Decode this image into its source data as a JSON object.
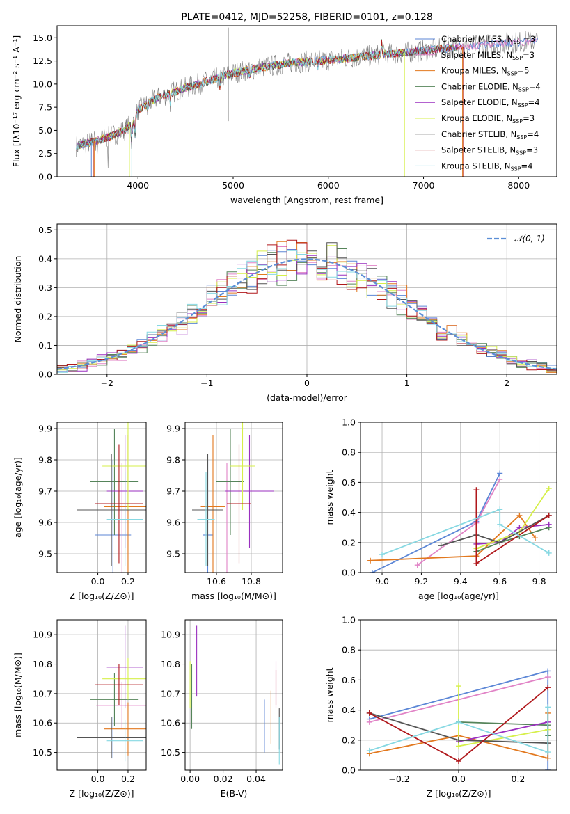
{
  "colors": {
    "chabrier_miles": "#5b86d6",
    "salpeter_miles": "#e183c6",
    "kroupa_miles": "#e2781e",
    "chabrier_elodie": "#55845a",
    "salpeter_elodie": "#9a2fbf",
    "kroupa_elodie": "#d6ef4a",
    "chabrier_stelib": "#545454",
    "salpeter_stelib": "#b0181c",
    "kroupa_stelib": "#86d8e2",
    "gaussian": "#5b8ed6",
    "grid": "#b0b0b0"
  },
  "chart_data": [
    {
      "id": "spectrum",
      "type": "line",
      "title": "PLATE=0412, MJD=52258, FIBERID=0101, z=0.128",
      "xlabel": "wavelength [Angstrom, rest frame]",
      "ylabel": "Flux [fλ10⁻¹⁷ erg cm⁻² s⁻¹ A⁻¹]",
      "xlim": [
        3150,
        8400
      ],
      "ylim": [
        0,
        16.3
      ],
      "xticks": [
        4000,
        5000,
        6000,
        7000,
        8000
      ],
      "yticks": [
        0.0,
        2.5,
        5.0,
        7.5,
        10.0,
        12.5,
        15.0
      ],
      "grid": false,
      "legend_position": "top-right",
      "legend": [
        {
          "label": "Chabrier MILES, N_SSP=3",
          "color": "#5b86d6"
        },
        {
          "label": "Salpeter MILES, N_SSP=3",
          "color": "#e183c6"
        },
        {
          "label": "Kroupa MILES, N_SSP=5",
          "color": "#e2781e"
        },
        {
          "label": "Chabrier ELODIE, N_SSP=4",
          "color": "#55845a"
        },
        {
          "label": "Salpeter ELODIE, N_SSP=4",
          "color": "#9a2fbf"
        },
        {
          "label": "Kroupa ELODIE, N_SSP=3",
          "color": "#d6ef4a"
        },
        {
          "label": "Chabrier STELIB, N_SSP=4",
          "color": "#545454"
        },
        {
          "label": "Salpeter STELIB, N_SSP=3",
          "color": "#b0181c"
        },
        {
          "label": "Kroupa STELIB, N_SSP=4",
          "color": "#86d8e2"
        }
      ],
      "continuum": {
        "x": [
          3350,
          3500,
          3700,
          3850,
          3950,
          4000,
          4200,
          4500,
          4800,
          5000,
          5300,
          5600,
          6000,
          6400,
          6800,
          7200,
          7500,
          7800,
          8200
        ],
        "y": [
          3.3,
          3.7,
          4.3,
          5.0,
          5.8,
          7.2,
          8.5,
          9.6,
          10.5,
          11.2,
          11.8,
          12.3,
          12.6,
          13.0,
          13.4,
          13.8,
          14.1,
          14.4,
          14.7
        ]
      }
    },
    {
      "id": "residuals",
      "type": "histogram",
      "xlabel": "(data-model)/error",
      "ylabel": "Normed distribution",
      "xlim": [
        -2.5,
        2.5
      ],
      "ylim": [
        0,
        0.52
      ],
      "xticks": [
        -2,
        -1,
        0,
        1,
        2
      ],
      "yticks": [
        0.0,
        0.1,
        0.2,
        0.3,
        0.4,
        0.5
      ],
      "grid": true,
      "legend_position": "top-right",
      "legend": [
        {
          "label": "𝒩(0, 1)",
          "color": "#5b8ed6"
        }
      ],
      "bin_width": 0.1
    },
    {
      "id": "age_vs_Z",
      "type": "errorbar",
      "xlabel": "Z [log₁₀(Z/Z⊙)]",
      "ylabel": "age  [log₁₀(age/yr)]",
      "xlim": [
        -0.27,
        0.32
      ],
      "ylim": [
        9.44,
        9.92
      ],
      "xticks": [
        0.0,
        0.2
      ],
      "yticks": [
        9.5,
        9.6,
        9.7,
        9.8,
        9.9
      ],
      "grid": true,
      "points": [
        {
          "x": 0.1,
          "xerr": 0.12,
          "y": 9.56,
          "yerr": 0.24,
          "color": "#5b86d6"
        },
        {
          "x": 0.16,
          "xerr": 0.17,
          "y": 9.55,
          "yerr": 0.24,
          "color": "#e183c6"
        },
        {
          "x": 0.2,
          "xerr": 0.16,
          "y": 9.65,
          "yerr": 0.23,
          "color": "#e2781e"
        },
        {
          "x": 0.11,
          "xerr": 0.16,
          "y": 9.73,
          "yerr": 0.17,
          "color": "#55845a"
        },
        {
          "x": 0.18,
          "xerr": 0.12,
          "y": 9.7,
          "yerr": 0.18,
          "color": "#9a2fbf"
        },
        {
          "x": 0.2,
          "xerr": 0.17,
          "y": 9.78,
          "yerr": 0.14,
          "color": "#d6ef4a"
        },
        {
          "x": 0.09,
          "xerr": 0.23,
          "y": 9.64,
          "yerr": 0.18,
          "color": "#545454"
        },
        {
          "x": 0.14,
          "xerr": 0.16,
          "y": 9.66,
          "yerr": 0.19,
          "color": "#b0181c"
        },
        {
          "x": 0.18,
          "xerr": 0.12,
          "y": 9.61,
          "yerr": 0.15,
          "color": "#86d8e2"
        }
      ]
    },
    {
      "id": "age_vs_mass",
      "type": "errorbar",
      "xlabel": "mass [log₁₀(M/M⊙)]",
      "ylabel": "",
      "xlim": [
        10.42,
        10.98
      ],
      "ylim": [
        9.44,
        9.92
      ],
      "xticks": [
        10.6,
        10.8
      ],
      "yticks": [
        9.5,
        9.6,
        9.7,
        9.8,
        9.9
      ],
      "grid": true,
      "points": [
        {
          "x": 10.55,
          "xerr": 0.03,
          "y": 9.56,
          "yerr": 0.24,
          "color": "#5b86d6"
        },
        {
          "x": 10.66,
          "xerr": 0.06,
          "y": 9.55,
          "yerr": 0.24,
          "color": "#e183c6"
        },
        {
          "x": 10.58,
          "xerr": 0.07,
          "y": 9.65,
          "yerr": 0.23,
          "color": "#e2781e"
        },
        {
          "x": 10.68,
          "xerr": 0.08,
          "y": 9.73,
          "yerr": 0.17,
          "color": "#55845a"
        },
        {
          "x": 10.79,
          "xerr": 0.14,
          "y": 9.7,
          "yerr": 0.18,
          "color": "#9a2fbf"
        },
        {
          "x": 10.75,
          "xerr": 0.07,
          "y": 9.78,
          "yerr": 0.14,
          "color": "#d6ef4a"
        },
        {
          "x": 10.55,
          "xerr": 0.09,
          "y": 9.64,
          "yerr": 0.18,
          "color": "#545454"
        },
        {
          "x": 10.73,
          "xerr": 0.07,
          "y": 9.66,
          "yerr": 0.19,
          "color": "#b0181c"
        },
        {
          "x": 10.54,
          "xerr": 0.05,
          "y": 9.61,
          "yerr": 0.15,
          "color": "#86d8e2"
        }
      ]
    },
    {
      "id": "weight_vs_age",
      "type": "line",
      "xlabel": "age  [log₁₀(age/yr)]",
      "ylabel": "mass weight",
      "xlim": [
        8.89,
        9.89
      ],
      "ylim": [
        0,
        1.0
      ],
      "xticks": [
        9.0,
        9.2,
        9.4,
        9.6,
        9.8
      ],
      "yticks": [
        0.0,
        0.2,
        0.4,
        0.6,
        0.8,
        1.0
      ],
      "grid": true,
      "series": [
        {
          "color": "#5b86d6",
          "x": [
            8.95,
            9.48,
            9.6
          ],
          "y": [
            0.0,
            0.34,
            0.66
          ]
        },
        {
          "color": "#e183c6",
          "x": [
            9.18,
            9.48,
            9.6
          ],
          "y": [
            0.05,
            0.33,
            0.62
          ]
        },
        {
          "color": "#e2781e",
          "x": [
            8.94,
            9.48,
            9.7,
            9.78
          ],
          "y": [
            0.08,
            0.11,
            0.38,
            0.23
          ]
        },
        {
          "color": "#55845a",
          "x": [
            9.48,
            9.6,
            9.7,
            9.85
          ],
          "y": [
            0.14,
            0.2,
            0.24,
            0.3
          ]
        },
        {
          "color": "#9a2fbf",
          "x": [
            9.48,
            9.6,
            9.7,
            9.85
          ],
          "y": [
            0.19,
            0.2,
            0.3,
            0.32
          ]
        },
        {
          "color": "#d6ef4a",
          "x": [
            9.48,
            9.7,
            9.85
          ],
          "y": [
            0.16,
            0.27,
            0.56
          ]
        },
        {
          "color": "#545454",
          "x": [
            9.3,
            9.48,
            9.6,
            9.85
          ],
          "y": [
            0.18,
            0.25,
            0.2,
            0.38
          ]
        },
        {
          "color": "#b0181c",
          "x": [
            9.48,
            9.48,
            9.85
          ],
          "y": [
            0.55,
            0.06,
            0.38
          ]
        },
        {
          "color": "#86d8e2",
          "x": [
            9.0,
            9.6,
            9.6,
            9.85
          ],
          "y": [
            0.12,
            0.42,
            0.32,
            0.13
          ]
        }
      ]
    },
    {
      "id": "mass_vs_Z",
      "type": "errorbar",
      "xlabel": "Z [log₁₀(Z/Z⊙)]",
      "ylabel": "mass [log₁₀(M/M⊙)]",
      "xlim": [
        -0.27,
        0.32
      ],
      "ylim": [
        10.44,
        10.95
      ],
      "xticks": [
        0.0,
        0.2
      ],
      "yticks": [
        10.5,
        10.6,
        10.7,
        10.8,
        10.9
      ],
      "grid": true,
      "points": [
        {
          "x": 0.1,
          "xerr": 0.12,
          "y": 10.55,
          "yerr": 0.07,
          "color": "#5b86d6"
        },
        {
          "x": 0.16,
          "xerr": 0.17,
          "y": 10.66,
          "yerr": 0.08,
          "color": "#e183c6"
        },
        {
          "x": 0.2,
          "xerr": 0.16,
          "y": 10.58,
          "yerr": 0.09,
          "color": "#e2781e"
        },
        {
          "x": 0.11,
          "xerr": 0.16,
          "y": 10.68,
          "yerr": 0.09,
          "color": "#55845a"
        },
        {
          "x": 0.18,
          "xerr": 0.12,
          "y": 10.79,
          "yerr": 0.14,
          "color": "#9a2fbf"
        },
        {
          "x": 0.2,
          "xerr": 0.17,
          "y": 10.75,
          "yerr": 0.07,
          "color": "#d6ef4a"
        },
        {
          "x": 0.09,
          "xerr": 0.23,
          "y": 10.55,
          "yerr": 0.07,
          "color": "#545454"
        },
        {
          "x": 0.14,
          "xerr": 0.16,
          "y": 10.73,
          "yerr": 0.07,
          "color": "#b0181c"
        },
        {
          "x": 0.18,
          "xerr": 0.12,
          "y": 10.54,
          "yerr": 0.07,
          "color": "#86d8e2"
        }
      ]
    },
    {
      "id": "mass_vs_ebv",
      "type": "errorbar",
      "xlabel": "E(B-V)",
      "ylabel": "",
      "xlim": [
        -0.003,
        0.056
      ],
      "ylim": [
        10.44,
        10.95
      ],
      "xticks": [
        0.0,
        0.02,
        0.04
      ],
      "yticks": [
        10.5,
        10.6,
        10.7,
        10.8,
        10.9
      ],
      "grid": true,
      "points": [
        {
          "x": 0.045,
          "xerr": 0,
          "y": 10.59,
          "yerr": 0.09,
          "color": "#5b86d6"
        },
        {
          "x": 0.052,
          "xerr": 0,
          "y": 10.73,
          "yerr": 0.08,
          "color": "#e183c6"
        },
        {
          "x": 0.049,
          "xerr": 0,
          "y": 10.62,
          "yerr": 0.09,
          "color": "#e2781e"
        },
        {
          "x": 0.001,
          "xerr": 0,
          "y": 10.69,
          "yerr": 0.11,
          "color": "#55845a"
        },
        {
          "x": 0.004,
          "xerr": 0,
          "y": 10.81,
          "yerr": 0.12,
          "color": "#9a2fbf"
        },
        {
          "x": 0.0,
          "xerr": 0,
          "y": 10.73,
          "yerr": 0.08,
          "color": "#d6ef4a"
        },
        {
          "x": 0.054,
          "xerr": 0,
          "y": 10.58,
          "yerr": 0.07,
          "color": "#545454"
        },
        {
          "x": 0.052,
          "xerr": 0,
          "y": 10.72,
          "yerr": 0.06,
          "color": "#b0181c"
        },
        {
          "x": 0.054,
          "xerr": 0,
          "y": 10.54,
          "yerr": 0.08,
          "color": "#86d8e2"
        }
      ]
    },
    {
      "id": "weight_vs_Z",
      "type": "line",
      "xlabel": "Z [log₁₀(Z/Z⊙)]",
      "ylabel": "mass weight",
      "xlim": [
        -0.33,
        0.33
      ],
      "ylim": [
        0,
        1.0
      ],
      "xticks": [
        -0.2,
        0.0,
        0.2
      ],
      "yticks": [
        0.0,
        0.2,
        0.4,
        0.6,
        0.8,
        1.0
      ],
      "grid": true,
      "series": [
        {
          "color": "#5b86d6",
          "x": [
            -0.3,
            0.3,
            0.3
          ],
          "y": [
            0.34,
            0.66,
            0.0
          ]
        },
        {
          "color": "#e183c6",
          "x": [
            -0.3,
            0.3
          ],
          "y": [
            0.32,
            0.62
          ]
        },
        {
          "color": "#e2781e",
          "x": [
            -0.3,
            0.0,
            0.3,
            0.3
          ],
          "y": [
            0.11,
            0.23,
            0.08,
            0.38
          ]
        },
        {
          "color": "#55845a",
          "x": [
            0.0,
            0.3,
            0.3
          ],
          "y": [
            0.32,
            0.3,
            0.23
          ]
        },
        {
          "color": "#9a2fbf",
          "x": [
            0.0,
            0.0,
            0.3
          ],
          "y": [
            0.2,
            0.19,
            0.32
          ]
        },
        {
          "color": "#d6ef4a",
          "x": [
            0.0,
            0.0,
            0.3
          ],
          "y": [
            0.56,
            0.16,
            0.27
          ]
        },
        {
          "color": "#545454",
          "x": [
            -0.3,
            0.0,
            0.3
          ],
          "y": [
            0.38,
            0.2,
            0.18
          ]
        },
        {
          "color": "#b0181c",
          "x": [
            -0.3,
            0.0,
            0.3
          ],
          "y": [
            0.38,
            0.06,
            0.55
          ]
        },
        {
          "color": "#86d8e2",
          "x": [
            -0.3,
            0.0,
            0.3,
            0.3
          ],
          "y": [
            0.13,
            0.32,
            0.12,
            0.42
          ]
        }
      ]
    }
  ]
}
